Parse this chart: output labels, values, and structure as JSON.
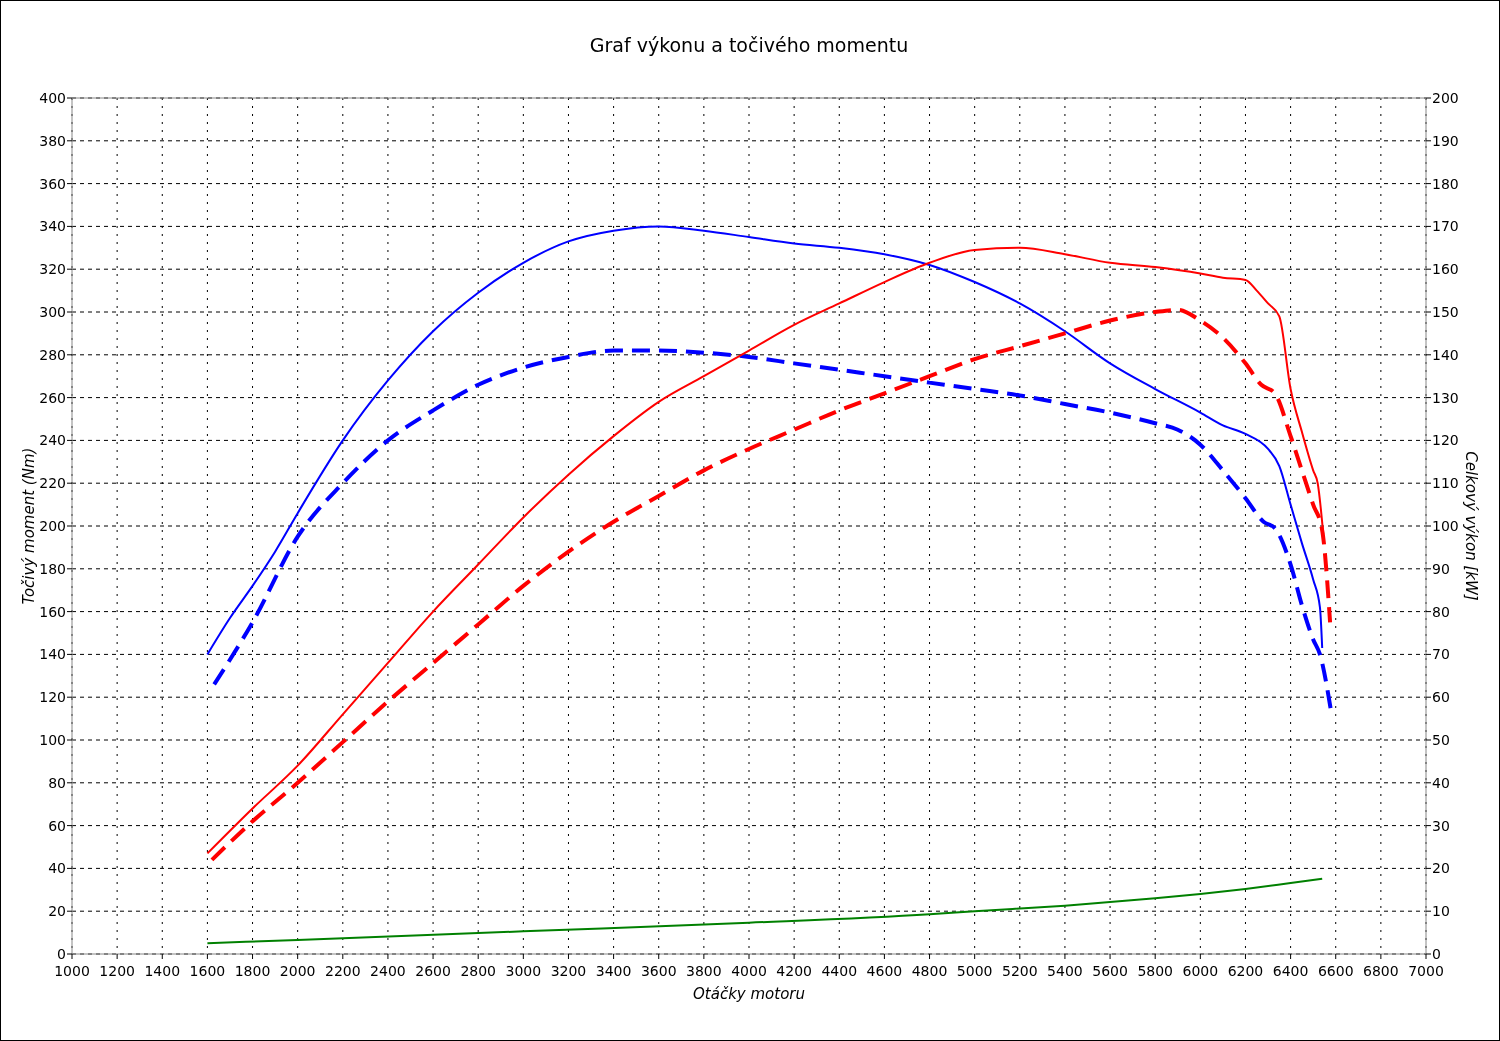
{
  "chart_data": {
    "type": "line",
    "title": "Graf výkonu a točivého momentu",
    "xlabel": "Otáčky motoru",
    "ylabel": "Točivý moment (Nm)",
    "y2label": "Celkový výkon [kW]",
    "xlim": [
      1000,
      7000
    ],
    "xticks": [
      1000,
      1200,
      1400,
      1600,
      1800,
      2000,
      2200,
      2400,
      2600,
      2800,
      3000,
      3200,
      3400,
      3600,
      3800,
      4000,
      4200,
      4400,
      4600,
      4800,
      5000,
      5200,
      5400,
      5600,
      5800,
      6000,
      6200,
      6400,
      6600,
      6800,
      7000
    ],
    "ylim": [
      0,
      400
    ],
    "yticks": [
      0,
      20,
      40,
      60,
      80,
      100,
      120,
      140,
      160,
      180,
      200,
      220,
      240,
      260,
      280,
      300,
      320,
      340,
      360,
      380,
      400
    ],
    "y2lim": [
      0,
      200
    ],
    "y2ticks": [
      0,
      10,
      20,
      30,
      40,
      50,
      60,
      70,
      80,
      90,
      100,
      110,
      120,
      130,
      140,
      150,
      160,
      170,
      180,
      190,
      200
    ],
    "grid": true,
    "marker": "none",
    "series": [
      {
        "color": "#0000ff",
        "line_style": "solid",
        "x": [
          1600,
          1700,
          1800,
          1900,
          2000,
          2200,
          2400,
          2600,
          2800,
          3000,
          3200,
          3400,
          3600,
          3800,
          4000,
          4200,
          4400,
          4600,
          4800,
          5000,
          5200,
          5400,
          5600,
          5800,
          6000,
          6100,
          6200,
          6300,
          6350,
          6400,
          6450,
          6500,
          6530,
          6540
        ],
        "values": [
          140,
          157,
          172,
          188,
          206,
          240,
          268,
          291,
          309,
          323,
          333,
          338,
          340,
          338,
          335,
          332,
          330,
          327,
          322,
          314,
          304,
          291,
          276,
          264,
          253,
          247,
          243,
          236,
          228,
          210,
          192,
          175,
          162,
          143
        ]
      },
      {
        "color": "#0000ff",
        "line_style": "dashed",
        "x": [
          1630,
          1800,
          2000,
          2200,
          2400,
          2600,
          2800,
          3000,
          3200,
          3400,
          3600,
          3800,
          4000,
          4200,
          4400,
          4600,
          4800,
          5000,
          5200,
          5400,
          5600,
          5800,
          5900,
          6000,
          6100,
          6200,
          6280,
          6330,
          6400,
          6450,
          6500,
          6530,
          6580
        ],
        "values": [
          126,
          155,
          195,
          220,
          240,
          254,
          266,
          274,
          279,
          282,
          282,
          281,
          279,
          276,
          273,
          270,
          267,
          264,
          261,
          257,
          253,
          248,
          245,
          238,
          226,
          213,
          202,
          199,
          182,
          163,
          147,
          140,
          113
        ]
      },
      {
        "color": "#ff0000",
        "line_style": "solid",
        "axis": "y2",
        "x": [
          1600,
          1800,
          2000,
          2200,
          2400,
          2600,
          2800,
          3000,
          3200,
          3400,
          3600,
          3800,
          4000,
          4200,
          4400,
          4600,
          4800,
          5000,
          5200,
          5400,
          5600,
          5800,
          6000,
          6100,
          6200,
          6250,
          6300,
          6350,
          6400,
          6450,
          6500,
          6520,
          6545
        ],
        "values": [
          23.5,
          34,
          44,
          56,
          68,
          80,
          91,
          102,
          112,
          121,
          129,
          135,
          141,
          147,
          152,
          157,
          161.5,
          164.5,
          165,
          163.5,
          161.5,
          160.5,
          159,
          158,
          157.5,
          155,
          152,
          149,
          132,
          122,
          113,
          110,
          98
        ]
      },
      {
        "color": "#ff0000",
        "line_style": "dashed",
        "axis": "y2",
        "x": [
          1620,
          1800,
          2000,
          2200,
          2400,
          2600,
          2800,
          3000,
          3200,
          3400,
          3600,
          3800,
          4000,
          4200,
          4400,
          4600,
          4800,
          5000,
          5200,
          5400,
          5600,
          5800,
          5900,
          6000,
          6100,
          6200,
          6270,
          6330,
          6400,
          6450,
          6500,
          6540,
          6575
        ],
        "values": [
          22,
          31,
          40,
          49.5,
          59,
          68,
          77,
          86,
          94,
          101,
          107,
          113,
          118,
          122.5,
          127,
          131,
          135,
          139,
          142,
          145,
          148,
          150,
          150.5,
          148,
          144,
          138,
          133,
          131,
          121,
          113,
          105,
          99,
          77.5
        ]
      },
      {
        "color": "#008000",
        "line_style": "solid",
        "axis": "y2",
        "x": [
          1600,
          2000,
          3000,
          4000,
          4800,
          5000,
          5400,
          5800,
          6000,
          6200,
          6400,
          6540
        ],
        "values": [
          2.5,
          3.3,
          5.3,
          7.3,
          9.3,
          10,
          11.3,
          13,
          14,
          15.2,
          16.6,
          17.6
        ]
      }
    ]
  }
}
